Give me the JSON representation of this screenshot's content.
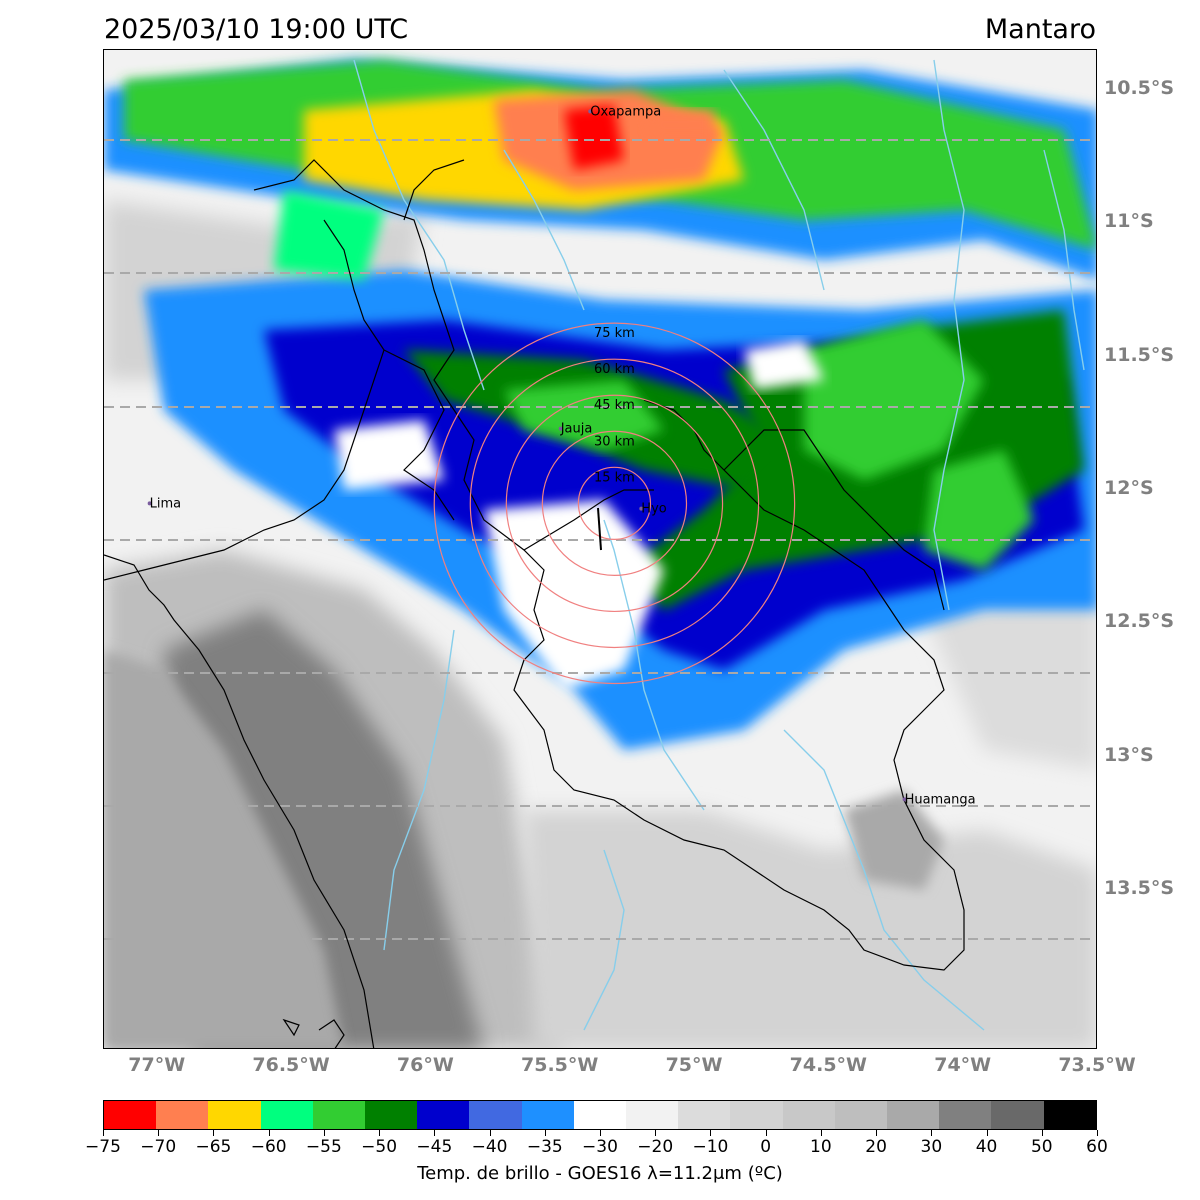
{
  "title": {
    "left": "2025/03/10 19:00 UTC",
    "right": "Mantaro"
  },
  "map": {
    "latitude_labels": [
      "10.5°S",
      "11°S",
      "11.5°S",
      "12°S",
      "12.5°S",
      "13°S",
      "13.5°S"
    ],
    "longitude_labels": [
      "77°W",
      "76.5°W",
      "76°W",
      "75.5°W",
      "75°W",
      "74.5°W",
      "74°W",
      "73.5°W"
    ],
    "cities": [
      {
        "name": "Oxapampa",
        "lon": -75.39,
        "lat": -10.58
      },
      {
        "name": "Jauja",
        "lon": -75.5,
        "lat": -11.77
      },
      {
        "name": "Hyo",
        "lon": -75.2,
        "lat": -12.07
      },
      {
        "name": "Lima",
        "lon": -77.03,
        "lat": -12.05
      },
      {
        "name": "Huamanga",
        "lon": -74.22,
        "lat": -13.16
      }
    ],
    "range_rings": {
      "center": {
        "lon": -75.3,
        "lat": -12.05
      },
      "labels": [
        "15 km",
        "30 km",
        "45 km",
        "60 km",
        "75 km"
      ],
      "radii_km": [
        15,
        30,
        45,
        60,
        75
      ],
      "color": "#f08080"
    },
    "river_color": "#87ceeb"
  },
  "colorbar": {
    "colors": [
      "#ff0000",
      "#ff7f50",
      "#ffd700",
      "#00ff7f",
      "#32cd32",
      "#008000",
      "#0000cd",
      "#4169e1",
      "#1e90ff",
      "#ffffff",
      "#f2f2f2",
      "#dcdcdc",
      "#d3d3d3",
      "#c8c8c8",
      "#bebebe",
      "#a9a9a9",
      "#808080",
      "#696969",
      "#000000"
    ],
    "tick_labels": [
      "−75",
      "−70",
      "−65",
      "−60",
      "−55",
      "−50",
      "−45",
      "−40",
      "−35",
      "−30",
      "−20",
      "−10",
      "0",
      "10",
      "20",
      "30",
      "40",
      "50",
      "60"
    ],
    "title": "Temp. de brillo - GOES16 λ=11.2μm (ºC)"
  }
}
